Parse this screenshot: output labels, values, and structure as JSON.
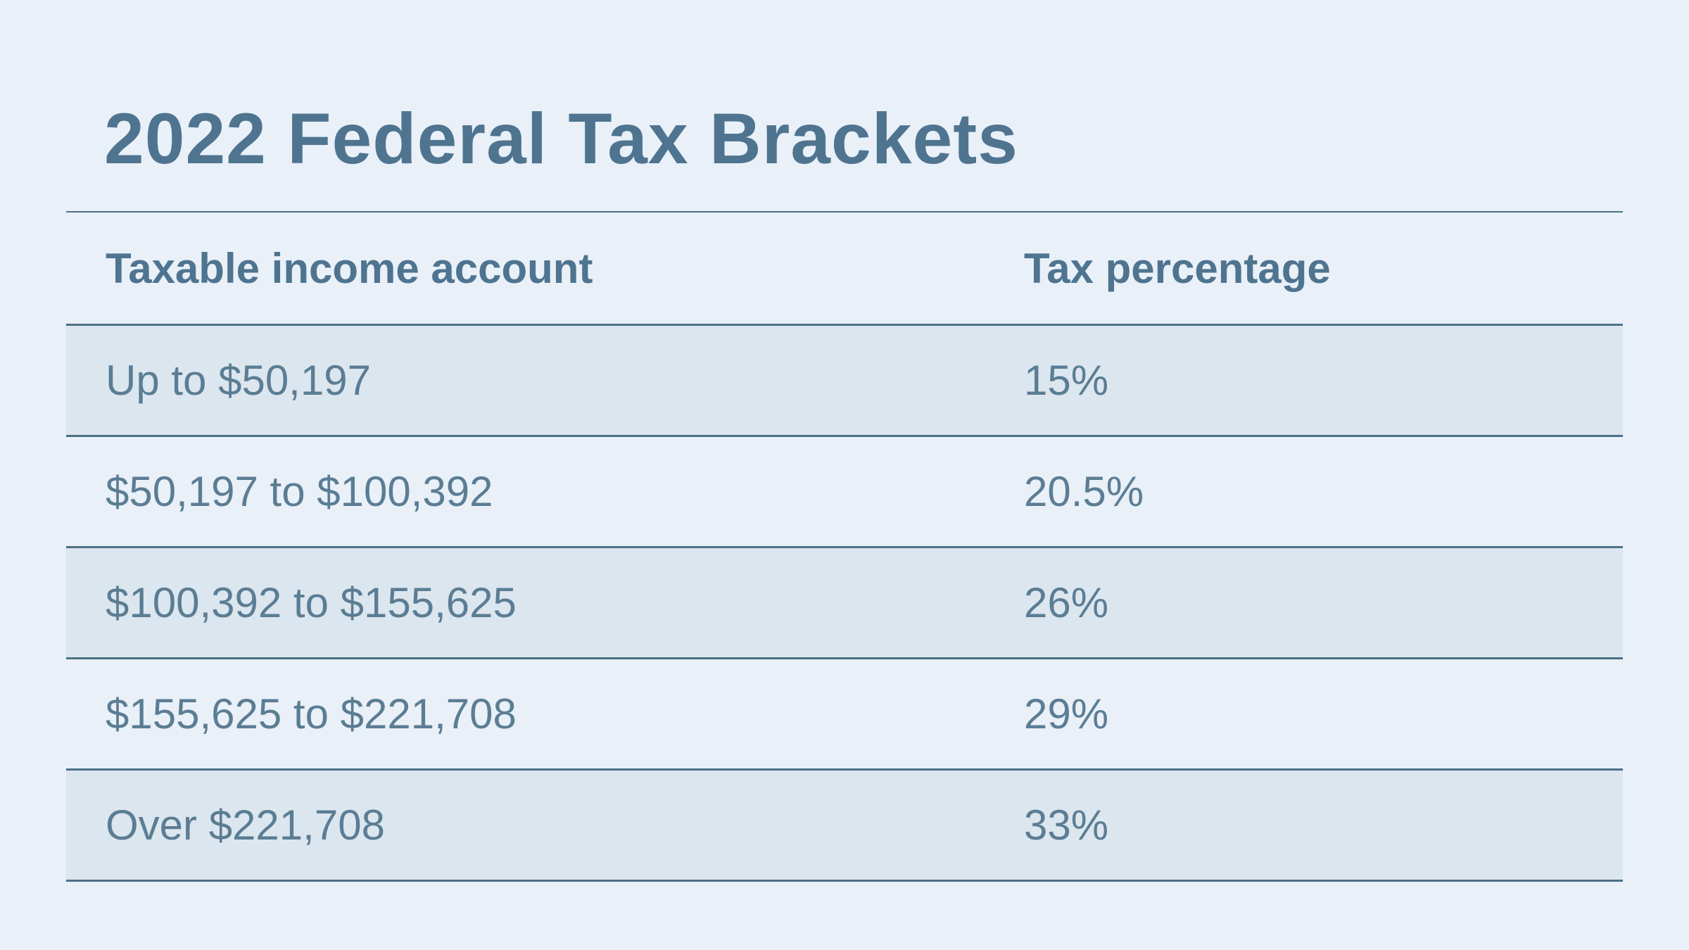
{
  "page": {
    "colors": {
      "background": "#e9f0f8",
      "row_shaded_background": "#dce6ef",
      "divider_line": "#4d7086",
      "title_text": "#4f7490",
      "body_text": "#5b7d94"
    }
  },
  "chart_data": {
    "type": "table",
    "title": "2022 Federal Tax Brackets",
    "columns": [
      "Taxable income account",
      "Tax percentage"
    ],
    "rows": [
      {
        "income": "Up to $50,197",
        "rate": "15%"
      },
      {
        "income": "$50,197 to $100,392",
        "rate": "20.5%"
      },
      {
        "income": "$100,392 to $155,625",
        "rate": "26%"
      },
      {
        "income": "$155,625 to $221,708",
        "rate": "29%"
      },
      {
        "income": "Over $221,708",
        "rate": "33%"
      }
    ],
    "rates_percent": [
      15,
      20.5,
      26,
      29,
      33
    ],
    "bracket_thresholds_dollars": [
      50197,
      100392,
      155625,
      221708
    ],
    "layout": {
      "row_shading": "alternating, first data row shaded",
      "grid": "horizontal dividers only"
    }
  }
}
